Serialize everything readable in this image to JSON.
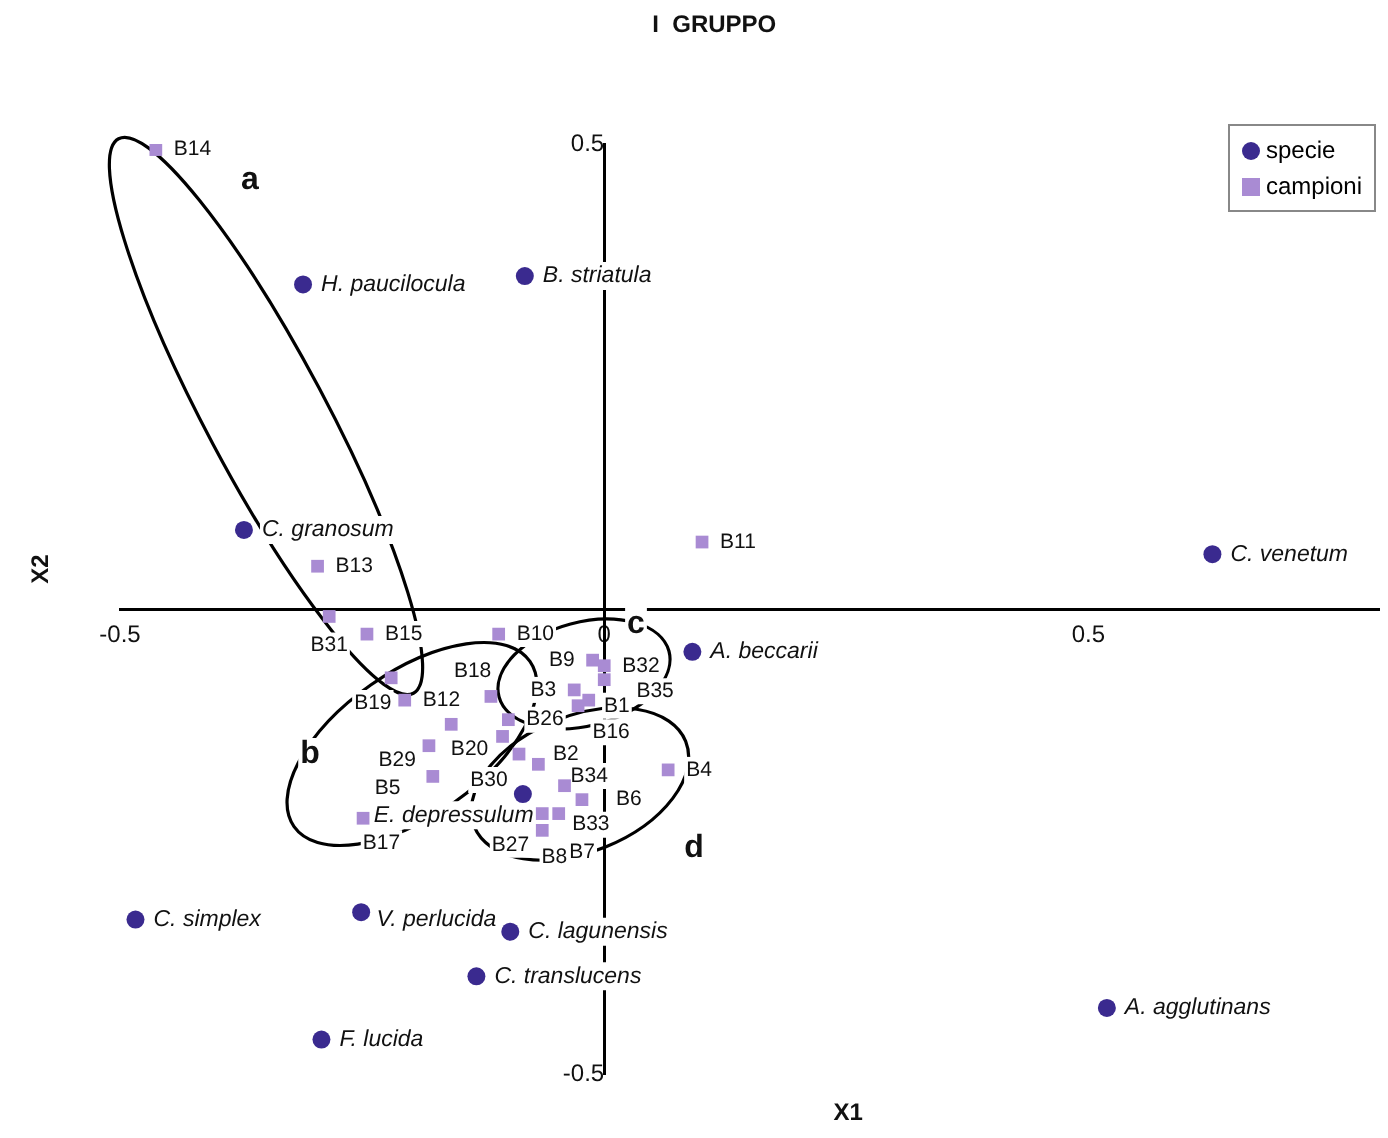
{
  "chart_data": {
    "type": "scatter",
    "title": "I  GRUPPO",
    "xlabel": "X1",
    "ylabel": "X2",
    "xlim": [
      -0.5,
      0.8
    ],
    "ylim": [
      -0.5,
      0.5
    ],
    "xticks": [
      -0.5,
      0,
      0.5
    ],
    "yticks": [
      -0.5,
      0.5
    ],
    "grid": false,
    "legend": "top right",
    "series": [
      {
        "name": "specie",
        "color": "#3a2a8f",
        "marker": "circle",
        "x": [
          -0.311,
          -0.082,
          -0.372,
          0.628,
          0.091,
          -0.084,
          -0.484,
          -0.251,
          -0.097,
          -0.132,
          -0.292,
          0.519
        ],
        "values": [
          0.349,
          0.358,
          0.085,
          0.059,
          -0.046,
          -0.199,
          -0.334,
          -0.326,
          -0.347,
          -0.395,
          -0.463,
          -0.429
        ],
        "value_labels": [
          "H. paucilocula",
          "B. striatula",
          "C. granosum",
          "C. venetum",
          "A. beccarii",
          "E. depressulum",
          "C. simplex",
          "V. perlucida",
          "C. lagunensis",
          "C. translucens",
          "F. lucida",
          "A. agglutinans"
        ]
      },
      {
        "name": "campioni",
        "color": "#a98bd3",
        "marker": "square",
        "x": [
          -0.463,
          0.101,
          -0.296,
          -0.284,
          -0.245,
          -0.22,
          -0.109,
          -0.206,
          -0.117,
          -0.158,
          -0.099,
          -0.105,
          -0.181,
          -0.177,
          -0.249,
          -0.088,
          -0.068,
          -0.041,
          -0.064,
          -0.064,
          -0.047,
          -0.023,
          0.066,
          -0.031,
          -0.012,
          -0.027,
          -0.016,
          0.0,
          0.0
        ],
        "values": [
          0.494,
          0.072,
          0.046,
          -0.008,
          -0.027,
          -0.074,
          -0.027,
          -0.098,
          -0.094,
          -0.124,
          -0.119,
          -0.137,
          -0.147,
          -0.18,
          -0.225,
          -0.156,
          -0.167,
          -0.19,
          -0.22,
          -0.238,
          -0.22,
          -0.205,
          -0.173,
          -0.087,
          -0.055,
          -0.104,
          -0.098,
          -0.061,
          -0.076
        ],
        "value_labels": [
          "B14",
          "B11",
          "B13",
          "B31",
          "B15",
          "B19",
          "B10",
          "B12",
          "B18",
          "B20",
          "B26",
          "B30",
          "B29",
          "B5",
          "B17",
          "B2",
          "B34",
          "B33",
          "B8",
          "B27",
          "B7",
          "B6",
          "B4",
          "B3",
          "B9",
          "B1",
          "B16",
          "B32",
          "B35"
        ]
      }
    ],
    "annotations": [
      "a",
      "b",
      "c",
      "d"
    ]
  }
}
